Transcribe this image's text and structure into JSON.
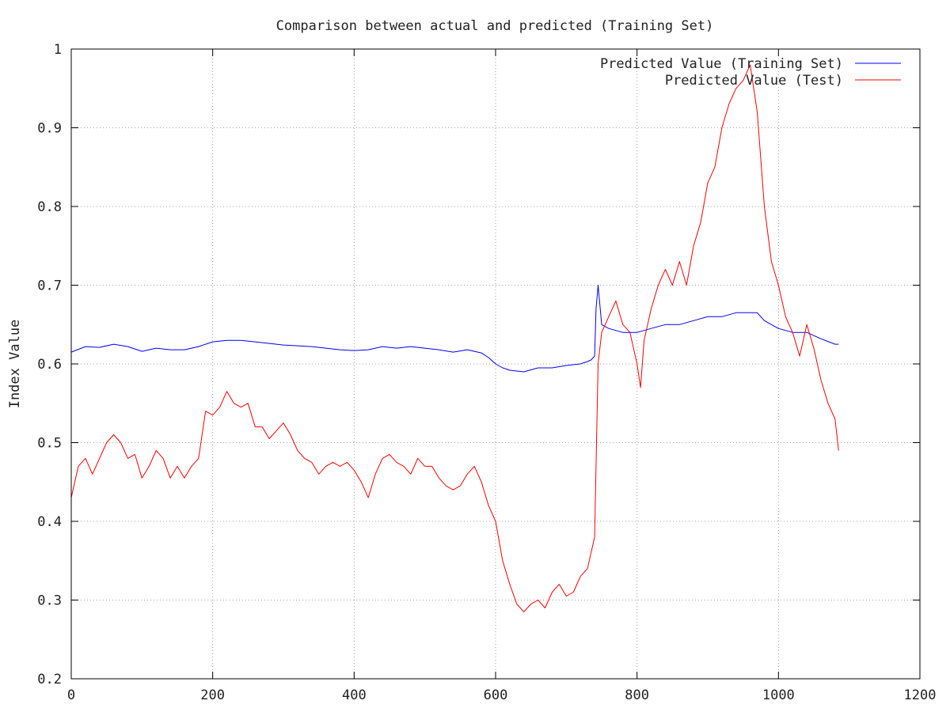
{
  "chart_data": {
    "type": "line",
    "title": "Comparison between actual and predicted (Training Set)",
    "xlabel": "",
    "ylabel": "Index Value",
    "xlim": [
      0,
      1200
    ],
    "ylim": [
      0.2,
      1.0
    ],
    "xticks": [
      0,
      200,
      400,
      600,
      800,
      1000,
      1200
    ],
    "yticks": [
      0.2,
      0.3,
      0.4,
      0.5,
      0.6,
      0.7,
      0.8,
      0.9,
      1.0
    ],
    "xtick_labels": [
      "0",
      "200",
      "400",
      "600",
      "800",
      "1000",
      "1200"
    ],
    "ytick_labels": [
      "0.2",
      "0.3",
      "0.4",
      "0.5",
      "0.6",
      "0.7",
      "0.8",
      "0.9",
      "1"
    ],
    "grid": true,
    "legend_position": "top-right",
    "series": [
      {
        "name": "Predicted Value (Training Set)",
        "color": "#0000ff",
        "x": [
          0,
          20,
          40,
          60,
          80,
          100,
          120,
          140,
          160,
          180,
          200,
          220,
          240,
          260,
          280,
          300,
          320,
          340,
          360,
          380,
          400,
          420,
          440,
          460,
          480,
          500,
          520,
          540,
          560,
          580,
          590,
          600,
          610,
          620,
          640,
          660,
          680,
          700,
          720,
          730,
          735,
          740,
          742,
          745,
          750,
          760,
          780,
          800,
          820,
          840,
          860,
          880,
          900,
          920,
          940,
          960,
          970,
          980,
          1000,
          1020,
          1040,
          1060,
          1080,
          1085
        ],
        "y": [
          0.615,
          0.622,
          0.621,
          0.625,
          0.622,
          0.616,
          0.62,
          0.618,
          0.618,
          0.622,
          0.628,
          0.63,
          0.63,
          0.628,
          0.626,
          0.624,
          0.623,
          0.622,
          0.62,
          0.618,
          0.617,
          0.618,
          0.622,
          0.62,
          0.622,
          0.62,
          0.618,
          0.615,
          0.618,
          0.614,
          0.608,
          0.6,
          0.595,
          0.592,
          0.59,
          0.595,
          0.595,
          0.598,
          0.6,
          0.603,
          0.605,
          0.61,
          0.67,
          0.7,
          0.65,
          0.645,
          0.64,
          0.64,
          0.645,
          0.65,
          0.65,
          0.655,
          0.66,
          0.66,
          0.665,
          0.665,
          0.665,
          0.655,
          0.645,
          0.64,
          0.64,
          0.632,
          0.625,
          0.625
        ]
      },
      {
        "name": "Predicted Value (Test)",
        "color": "#ff0000",
        "x": [
          0,
          10,
          20,
          30,
          40,
          50,
          60,
          70,
          80,
          90,
          100,
          110,
          120,
          130,
          140,
          150,
          160,
          170,
          180,
          190,
          200,
          210,
          220,
          230,
          240,
          250,
          260,
          270,
          280,
          290,
          300,
          310,
          320,
          330,
          340,
          350,
          360,
          370,
          380,
          390,
          400,
          410,
          420,
          430,
          440,
          450,
          460,
          470,
          480,
          490,
          500,
          510,
          520,
          530,
          540,
          550,
          560,
          570,
          580,
          590,
          600,
          610,
          615,
          620,
          630,
          640,
          650,
          660,
          670,
          680,
          690,
          700,
          710,
          720,
          730,
          740,
          745,
          750,
          760,
          770,
          780,
          790,
          800,
          805,
          810,
          820,
          830,
          840,
          850,
          860,
          870,
          880,
          890,
          900,
          910,
          920,
          930,
          940,
          950,
          960,
          970,
          980,
          990,
          1000,
          1010,
          1020,
          1030,
          1040,
          1050,
          1060,
          1070,
          1080,
          1085
        ],
        "y": [
          0.43,
          0.47,
          0.48,
          0.46,
          0.48,
          0.5,
          0.51,
          0.5,
          0.48,
          0.485,
          0.455,
          0.47,
          0.49,
          0.48,
          0.455,
          0.47,
          0.455,
          0.47,
          0.48,
          0.54,
          0.535,
          0.545,
          0.565,
          0.55,
          0.545,
          0.55,
          0.52,
          0.52,
          0.505,
          0.515,
          0.525,
          0.51,
          0.49,
          0.48,
          0.475,
          0.46,
          0.47,
          0.475,
          0.47,
          0.475,
          0.465,
          0.45,
          0.43,
          0.46,
          0.48,
          0.485,
          0.475,
          0.47,
          0.46,
          0.48,
          0.47,
          0.47,
          0.455,
          0.445,
          0.44,
          0.445,
          0.46,
          0.47,
          0.45,
          0.42,
          0.4,
          0.35,
          0.335,
          0.32,
          0.295,
          0.285,
          0.295,
          0.3,
          0.29,
          0.31,
          0.32,
          0.305,
          0.31,
          0.33,
          0.34,
          0.38,
          0.6,
          0.64,
          0.66,
          0.68,
          0.65,
          0.64,
          0.6,
          0.57,
          0.63,
          0.67,
          0.7,
          0.72,
          0.7,
          0.73,
          0.7,
          0.75,
          0.78,
          0.83,
          0.85,
          0.9,
          0.93,
          0.95,
          0.96,
          0.98,
          0.92,
          0.8,
          0.73,
          0.7,
          0.66,
          0.64,
          0.61,
          0.65,
          0.62,
          0.58,
          0.55,
          0.53,
          0.49
        ]
      }
    ]
  }
}
